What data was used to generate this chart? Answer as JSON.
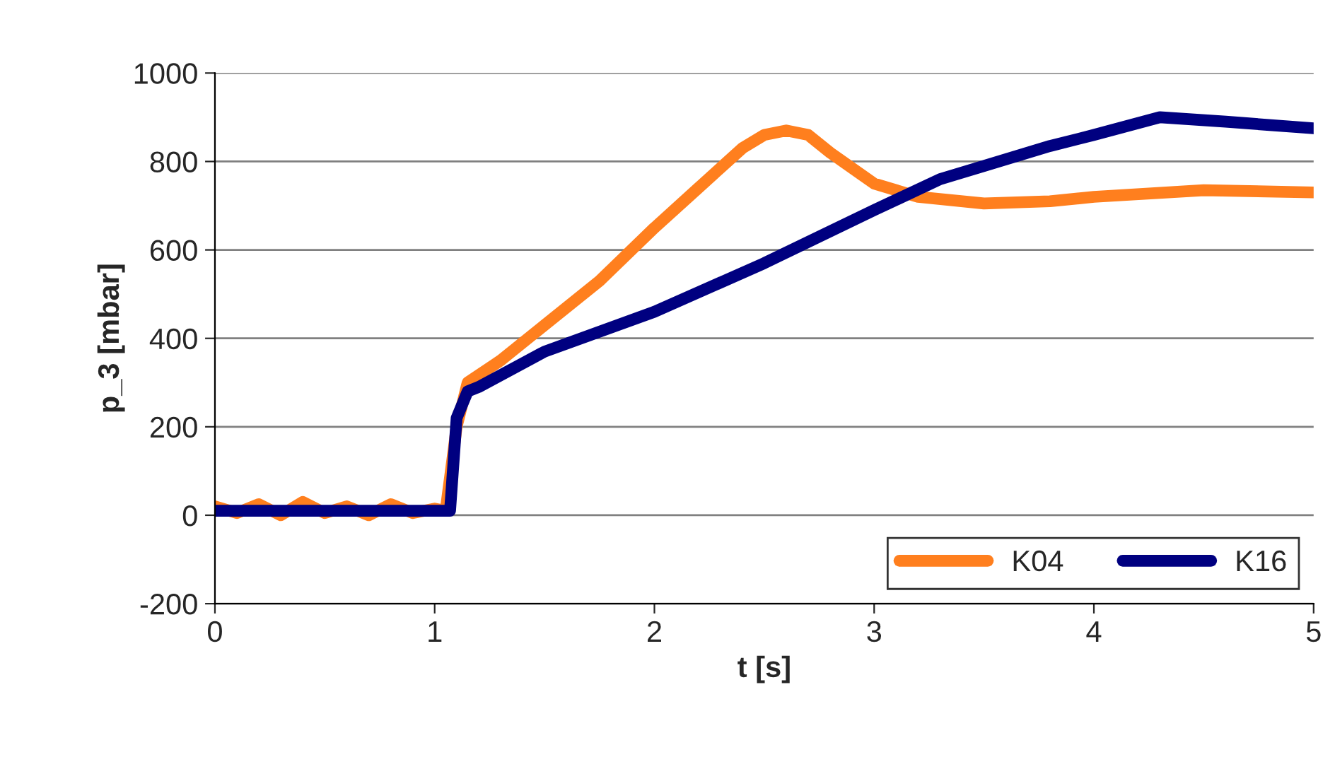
{
  "chart_data": {
    "type": "line",
    "xlabel": "t [s]",
    "ylabel": "p_3 [mbar]",
    "xlim": [
      0,
      5
    ],
    "xticks": [
      0,
      1,
      2,
      3,
      4,
      5
    ],
    "ylim": [
      -200,
      1000
    ],
    "yticks": [
      -200,
      0,
      200,
      400,
      600,
      800,
      1000
    ],
    "grid": "y",
    "legend": "bottom right",
    "line_style": "solid",
    "marker": "none",
    "series": [
      {
        "name": "K04",
        "color": "#ff7f1e",
        "x": [
          0,
          0.1,
          0.2,
          0.3,
          0.4,
          0.5,
          0.6,
          0.7,
          0.8,
          0.9,
          1.0,
          1.05,
          1.1,
          1.15,
          1.3,
          1.5,
          1.75,
          2.0,
          2.2,
          2.4,
          2.5,
          2.6,
          2.7,
          2.8,
          3.0,
          3.2,
          3.5,
          3.8,
          4.0,
          4.5,
          5.0
        ],
        "values": [
          20,
          5,
          25,
          0,
          30,
          5,
          20,
          0,
          25,
          5,
          15,
          10,
          200,
          300,
          350,
          430,
          530,
          650,
          740,
          830,
          860,
          870,
          860,
          820,
          750,
          720,
          705,
          710,
          720,
          735,
          730
        ]
      },
      {
        "name": "K16",
        "color": "#000080",
        "x": [
          0,
          0.5,
          1.0,
          1.07,
          1.1,
          1.15,
          1.2,
          1.5,
          2.0,
          2.5,
          3.0,
          3.3,
          3.5,
          3.8,
          4.0,
          4.3,
          4.6,
          5.0
        ],
        "values": [
          10,
          10,
          10,
          10,
          220,
          280,
          290,
          370,
          460,
          570,
          690,
          760,
          790,
          835,
          860,
          900,
          890,
          875
        ]
      }
    ]
  }
}
